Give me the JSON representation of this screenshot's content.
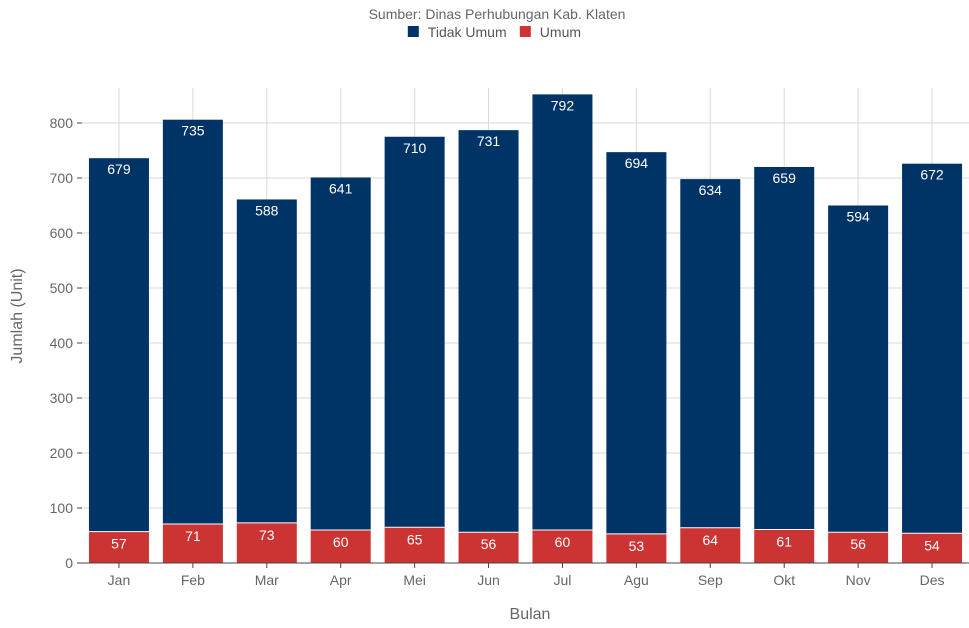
{
  "chart_data": {
    "type": "bar",
    "stacked": true,
    "subtitle": "Sumber: Dinas Perhubungan Kab. Klaten",
    "xlabel": "Bulan",
    "ylabel": "Jumlah (Unit)",
    "categories": [
      "Jan",
      "Feb",
      "Mar",
      "Apr",
      "Mei",
      "Jun",
      "Jul",
      "Agu",
      "Sep",
      "Okt",
      "Nov",
      "Des"
    ],
    "series": [
      {
        "name": "Umum",
        "color": "#cc3333",
        "values": [
          57,
          71,
          73,
          60,
          65,
          56,
          60,
          53,
          64,
          61,
          56,
          54
        ]
      },
      {
        "name": "Tidak Umum",
        "color": "#003366",
        "values": [
          679,
          735,
          588,
          641,
          710,
          731,
          792,
          694,
          634,
          659,
          594,
          672
        ]
      }
    ],
    "legend_order": [
      "Tidak Umum",
      "Umum"
    ],
    "legend_position": "top-center",
    "ylim": [
      0,
      900
    ],
    "yticks": [
      0,
      100,
      200,
      300,
      400,
      500,
      600,
      700,
      800
    ],
    "grid": true
  }
}
